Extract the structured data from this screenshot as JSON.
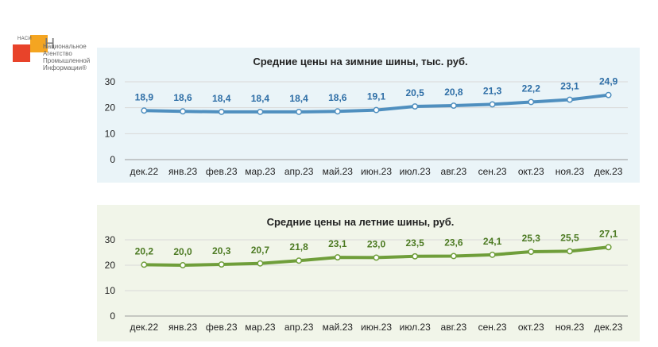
{
  "logo": {
    "abbr": "НАСИ",
    "initial": "Н",
    "text": "Национальное\nАгентство\nПромышленной\nИнформации®"
  },
  "chart_data": [
    {
      "type": "line",
      "title": "Средние цены на зимние шины, тыс. руб.",
      "categories": [
        "дек.22",
        "янв.23",
        "фев.23",
        "мар.23",
        "апр.23",
        "май.23",
        "июн.23",
        "июл.23",
        "авг.23",
        "сен.23",
        "окт.23",
        "ноя.23",
        "дек.23"
      ],
      "series": [
        {
          "values": [
            18.9,
            18.6,
            18.4,
            18.4,
            18.4,
            18.6,
            19.1,
            20.5,
            20.8,
            21.3,
            22.2,
            23.1,
            24.9
          ],
          "labels": [
            "18,9",
            "18,6",
            "18,4",
            "18,4",
            "18,4",
            "18,6",
            "19,1",
            "20,5",
            "20,8",
            "21,3",
            "22,2",
            "23,1",
            "24,9"
          ]
        }
      ],
      "ylim": [
        0,
        30
      ],
      "yticks": [
        "0",
        "10",
        "20",
        "30"
      ],
      "grid": true,
      "colors": {
        "line": "#4f8fbf",
        "label": "#2e6ea6",
        "panel": "#eaf4f8"
      }
    },
    {
      "type": "line",
      "title": "Средние цены на летние шины, руб.",
      "categories": [
        "дек.22",
        "янв.23",
        "фев.23",
        "мар.23",
        "апр.23",
        "май.23",
        "июн.23",
        "июл.23",
        "авг.23",
        "сен.23",
        "окт.23",
        "ноя.23",
        "дек.23"
      ],
      "series": [
        {
          "values": [
            20.2,
            20.0,
            20.3,
            20.7,
            21.8,
            23.1,
            23.0,
            23.5,
            23.6,
            24.1,
            25.3,
            25.5,
            27.1
          ],
          "labels": [
            "20,2",
            "20,0",
            "20,3",
            "20,7",
            "21,8",
            "23,1",
            "23,0",
            "23,5",
            "23,6",
            "24,1",
            "25,3",
            "25,5",
            "27,1"
          ]
        }
      ],
      "ylim": [
        0,
        30
      ],
      "yticks": [
        "0",
        "10",
        "20",
        "30"
      ],
      "grid": true,
      "colors": {
        "line": "#6f9e3a",
        "label": "#4c7a22",
        "panel": "#f1f5e9"
      }
    }
  ]
}
